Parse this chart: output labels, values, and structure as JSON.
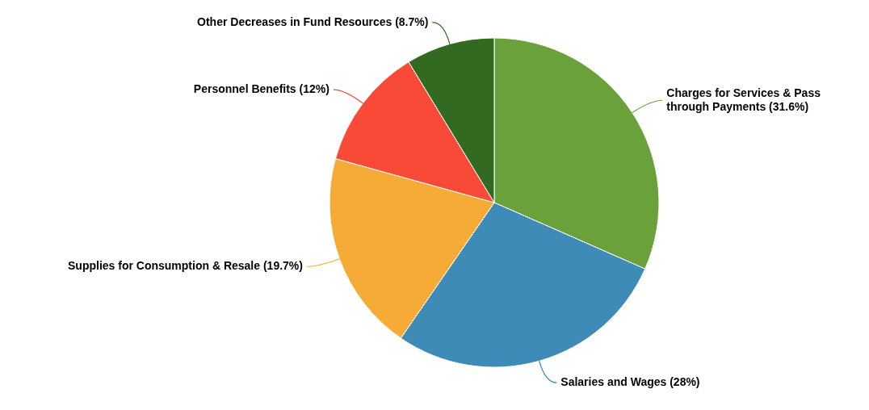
{
  "chart_data": {
    "type": "pie",
    "categories": [
      "Charges for Services & Pass through Payments",
      "Salaries and Wages",
      "Supplies for Consumption & Resale",
      "Personnel Benefits",
      "Other Decreases in Fund Resources"
    ],
    "values": [
      31.6,
      28,
      19.7,
      12,
      8.7
    ],
    "value_labels": [
      "(31.6%)",
      "(28%)",
      "(19.7%)",
      "(12%)",
      "(8.7%)"
    ],
    "colors": [
      "#6aa13a",
      "#3d8bb6",
      "#f7ab37",
      "#f94a37",
      "#336a21"
    ]
  }
}
